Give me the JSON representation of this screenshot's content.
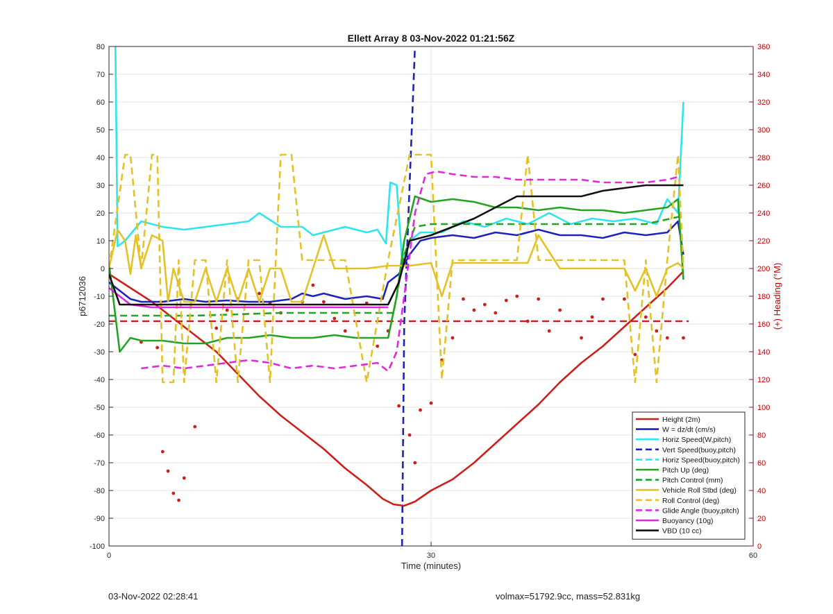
{
  "chart_data": {
    "type": "line",
    "title": "Ellett Array 8 03-Nov-2022 01:21:56Z",
    "xlabel": "Time (minutes)",
    "ylabel": "p6712036",
    "y2label": "(+) Heading (°M)",
    "xlim": [
      0,
      60
    ],
    "ylim": [
      -100,
      80
    ],
    "y2lim": [
      0,
      360
    ],
    "x_ticks": [
      0,
      30,
      60
    ],
    "y_ticks": [
      -100,
      -90,
      -80,
      -70,
      -60,
      -50,
      -40,
      -30,
      -20,
      -10,
      0,
      10,
      20,
      30,
      40,
      50,
      60,
      70,
      80
    ],
    "y2_ticks": [
      0,
      20,
      40,
      60,
      80,
      100,
      120,
      140,
      160,
      180,
      200,
      220,
      240,
      260,
      280,
      300,
      320,
      340,
      360
    ],
    "grid": true,
    "legend_position": "bottom-right",
    "series": [
      {
        "name": "Height (2m)",
        "color": "#cc1f1a",
        "style": "solid",
        "x": [
          0,
          2,
          4,
          6,
          8,
          10,
          12,
          14,
          16,
          18,
          20,
          22,
          24,
          25.5,
          26.5,
          27.5,
          28.5,
          30,
          32,
          34,
          36,
          38,
          40,
          42,
          44,
          46,
          48,
          50,
          52,
          53.5
        ],
        "y": [
          -2,
          -7,
          -12,
          -18,
          -24,
          -30,
          -38,
          -46,
          -53,
          -59,
          -65,
          -72,
          -78,
          -83,
          -85,
          -85.5,
          -84,
          -80,
          -76,
          -70,
          -63,
          -56,
          -49,
          -41,
          -34,
          -28,
          -21,
          -14,
          -7,
          -1
        ]
      },
      {
        "name": "W = dz/dt (cm/s)",
        "color": "#1d22b8",
        "style": "solid",
        "x": [
          0,
          1,
          2,
          3,
          5,
          7,
          9,
          11,
          13,
          15,
          17,
          18,
          19,
          20,
          22,
          24,
          25.5,
          26,
          27,
          28,
          29,
          30,
          32,
          34,
          36,
          38,
          40,
          42,
          44,
          46,
          48,
          50,
          52,
          53,
          53.5
        ],
        "y": [
          -5,
          -8,
          -11,
          -12,
          -12,
          -11,
          -12,
          -11.5,
          -12,
          -12,
          -11,
          -9,
          -10,
          -9,
          -11,
          -10,
          -11,
          -5,
          -2,
          5,
          10,
          11,
          12,
          11,
          13,
          12,
          14,
          12,
          12,
          11,
          13,
          12,
          13,
          17,
          5
        ]
      },
      {
        "name": "Horiz Speed(W,pitch)",
        "color": "#2ee4ee",
        "style": "solid",
        "x": [
          0.6,
          0.8,
          1.5,
          3,
          5,
          7,
          9,
          11,
          13,
          14,
          16,
          18,
          19,
          20,
          22,
          24,
          25,
          25.8,
          26.2,
          26.8,
          27.3,
          28,
          29,
          31,
          33,
          35,
          37,
          39,
          41,
          43,
          45,
          47,
          49,
          51,
          52,
          53,
          53.5
        ],
        "y": [
          80,
          8,
          10,
          17,
          15,
          14,
          15,
          16,
          17,
          20,
          15,
          15,
          12,
          13,
          15,
          13,
          14,
          9,
          31,
          30,
          3,
          10,
          13,
          13,
          17,
          15,
          18,
          16,
          20,
          16,
          18,
          17,
          18,
          16,
          25,
          20,
          60
        ]
      },
      {
        "name": "Vert Speed(buoy,pitch)",
        "color": "#1d22b8",
        "style": "dashed",
        "x": [
          27.3,
          27.5,
          28.5
        ],
        "y": [
          -100,
          -20,
          80
        ]
      },
      {
        "name": "Horiz Speed(buoy,pitch)",
        "color": "#2ee4ee",
        "style": "dashed",
        "x": [],
        "y": []
      },
      {
        "name": "Pitch Up (deg)",
        "color": "#23a31f",
        "style": "solid",
        "x": [
          0,
          1,
          2,
          3,
          5,
          7,
          9,
          11,
          13,
          15,
          17,
          19,
          21,
          23,
          25,
          26,
          26.8,
          27.5,
          28.5,
          30,
          32,
          34,
          36,
          38,
          40,
          42,
          44,
          46,
          48,
          50,
          52,
          53,
          53.5
        ],
        "y": [
          2,
          -30,
          -25,
          -26,
          -26,
          -27,
          -27,
          -25,
          -25,
          -24,
          -25,
          -25,
          -24,
          -25,
          -25,
          -25,
          -10,
          10,
          26,
          24,
          25,
          24,
          22,
          22,
          21,
          22,
          21,
          21,
          20,
          21,
          22,
          25,
          -4
        ]
      },
      {
        "name": "Pitch Control (mm)",
        "color": "#23a31f",
        "style": "dashed",
        "x": [
          0,
          8,
          16,
          24,
          26.5,
          27.5,
          28.5,
          30,
          40,
          50,
          53.5
        ],
        "y": [
          -17,
          -17,
          -16,
          -16,
          -16,
          5,
          15,
          16,
          16,
          16,
          19
        ]
      },
      {
        "name": "Vehicle Roll Stbd (deg)",
        "color": "#e4c126",
        "style": "solid",
        "x": [
          0,
          0.8,
          1.5,
          2,
          2.5,
          3,
          4,
          5,
          5.5,
          6,
          7,
          8,
          9,
          10,
          11,
          12,
          13,
          14,
          15,
          16,
          17,
          18,
          19,
          20,
          21,
          22,
          24,
          26,
          28,
          30,
          31,
          32,
          34,
          36,
          38,
          39,
          40,
          42,
          44,
          46,
          48,
          49,
          50,
          51,
          52,
          53,
          53.5
        ],
        "y": [
          0,
          14,
          10,
          -2,
          12,
          0,
          12,
          10,
          -12,
          0,
          -12,
          -12,
          0,
          -12,
          0,
          -12,
          0,
          -12,
          0,
          0,
          -12,
          -12,
          0,
          12,
          0,
          0,
          0,
          1,
          1,
          2,
          -10,
          2,
          2,
          2,
          2,
          2,
          12,
          0,
          0,
          0,
          0,
          -8,
          0,
          -10,
          0,
          2,
          0
        ]
      },
      {
        "name": "Roll Control (deg)",
        "color": "#e4c126",
        "style": "dashed",
        "x": [
          0,
          1.5,
          2,
          3,
          4,
          4.5,
          5,
          6,
          6.5,
          7,
          8,
          9,
          10,
          11,
          12,
          13,
          14,
          15,
          16,
          17,
          18,
          19,
          20,
          21,
          22,
          24,
          26,
          28,
          30,
          31,
          32,
          34,
          36,
          38,
          39,
          40,
          42,
          44,
          46,
          48,
          49,
          50,
          51,
          52,
          53,
          53.5
        ],
        "y": [
          0,
          41,
          41,
          0,
          41,
          41,
          -41,
          -41,
          3,
          -41,
          3,
          3,
          -41,
          3,
          -41,
          3,
          3,
          -41,
          41,
          41,
          3,
          3,
          3,
          3,
          3,
          -41,
          3,
          41,
          41,
          -40,
          3,
          3,
          3,
          3,
          41,
          3,
          3,
          3,
          3,
          3,
          -41,
          3,
          -41,
          3,
          41,
          0
        ]
      },
      {
        "name": "Glide Angle (buoy,pitch)",
        "color": "#dd2adb",
        "style": "dashed",
        "x": [
          3,
          5,
          7,
          9,
          11,
          13,
          15,
          17,
          19,
          21,
          23,
          25,
          26,
          26.8,
          27.5,
          28.5,
          29.5,
          30.5,
          32,
          34,
          36,
          38,
          40,
          42,
          44,
          46,
          48,
          50,
          52,
          53
        ],
        "y": [
          -36,
          -35,
          -36,
          -35,
          -34,
          -33,
          -34,
          -36,
          -35,
          -36,
          -35,
          -34,
          -37,
          -30,
          -10,
          20,
          34,
          35,
          34,
          33,
          33,
          32,
          32,
          32,
          32,
          31,
          31,
          31,
          32,
          33
        ]
      },
      {
        "name": "Buoyancy (10g)",
        "color": "#dd2adb",
        "style": "solid",
        "x": [
          0,
          2,
          4,
          10,
          16,
          22,
          26
        ],
        "y": [
          -7,
          -13,
          -14,
          -14,
          -14,
          -14,
          -14
        ]
      },
      {
        "name": "VBD (10 cc)",
        "color": "#111111",
        "style": "solid",
        "x": [
          0,
          1,
          26,
          27,
          28,
          30,
          32,
          34,
          36,
          38,
          40,
          42,
          44,
          46,
          48,
          50,
          52,
          53.5
        ],
        "y": [
          -2,
          -13,
          -13,
          -5,
          10,
          12,
          15,
          18,
          22,
          26,
          26,
          26,
          26,
          28,
          29,
          30,
          30,
          30
        ]
      }
    ],
    "heading_series": [
      {
        "name": "",
        "color": "#cc1f1a",
        "style": "dashed",
        "axis": "y2",
        "x": [
          0,
          54
        ],
        "y": [
          162,
          162
        ]
      },
      {
        "name": "",
        "color": "#cc1f1a",
        "style": "markers",
        "axis": "y2",
        "x": [
          3,
          4.5,
          5,
          5.5,
          6,
          6.5,
          7,
          8,
          10,
          11,
          12,
          14,
          15,
          16,
          18,
          19,
          20,
          21,
          22,
          24,
          25,
          26,
          27,
          28,
          28.5,
          29,
          30,
          31,
          32,
          33,
          34,
          35,
          36,
          37,
          38,
          39,
          40,
          41,
          42,
          44,
          45,
          46,
          48,
          49,
          50,
          51,
          52,
          53.5
        ],
        "y": [
          147,
          143,
          68,
          54,
          38,
          33,
          49,
          86,
          157,
          170,
          178,
          182,
          175,
          168,
          176,
          188,
          176,
          164,
          155,
          175,
          144,
          155,
          101,
          80,
          60,
          98,
          103,
          134,
          150,
          178,
          170,
          174,
          168,
          177,
          180,
          162,
          178,
          155,
          170,
          150,
          165,
          178,
          178,
          138,
          165,
          155,
          150,
          150
        ]
      }
    ]
  },
  "footer": {
    "left": "03-Nov-2022 02:28:41",
    "right": "volmax=51792.9cc, mass=52.831kg"
  }
}
